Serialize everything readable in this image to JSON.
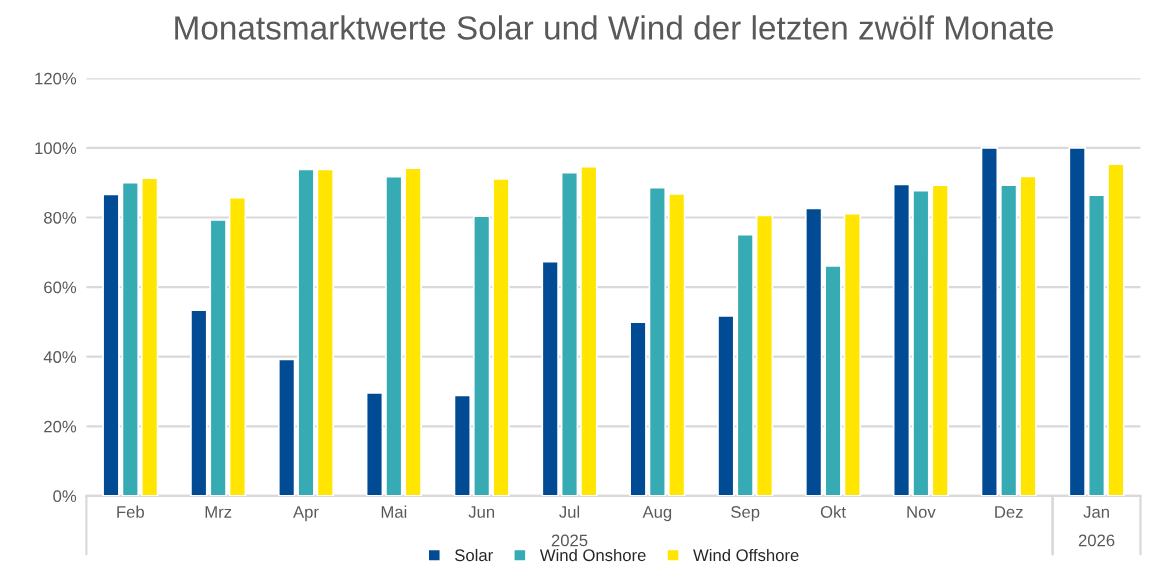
{
  "chart_data": {
    "type": "bar",
    "title": "Monatsmarktwerte Solar und Wind der letzten zwölf Monate",
    "categories": [
      "Feb",
      "Mrz",
      "Apr",
      "Mai",
      "Jun",
      "Jul",
      "Aug",
      "Sep",
      "Okt",
      "Nov",
      "Dez",
      "Jan"
    ],
    "series": [
      {
        "name": "Solar",
        "color": "#004b93",
        "values": [
          86.6,
          53.4,
          39.2,
          29.6,
          28.9,
          67.3,
          49.9,
          51.7,
          82.6,
          89.5,
          100,
          100
        ]
      },
      {
        "name": "Wind Onshore",
        "color": "#36abb3",
        "values": [
          90.0,
          79.3,
          93.8,
          91.7,
          80.4,
          92.9,
          88.6,
          75.1,
          66.1,
          87.7,
          89.3,
          86.4
        ]
      },
      {
        "name": "Wind Offshore",
        "color": "#ffe500",
        "values": [
          91.3,
          85.7,
          93.8,
          94.2,
          91.1,
          94.6,
          86.8,
          80.6,
          81.1,
          89.3,
          91.8,
          95.3
        ]
      }
    ],
    "ylim": [
      0,
      120
    ],
    "yticks": [
      {
        "value": 0,
        "label": "0%"
      },
      {
        "value": 20,
        "label": "20%"
      },
      {
        "value": 40,
        "label": "40%"
      },
      {
        "value": 60,
        "label": "60%"
      },
      {
        "value": 80,
        "label": "80%"
      },
      {
        "value": 100,
        "label": "100%"
      },
      {
        "value": 120,
        "label": "120%"
      }
    ],
    "annotations": [
      "2025",
      "2026"
    ],
    "grid": "y",
    "legend": "bottom"
  }
}
